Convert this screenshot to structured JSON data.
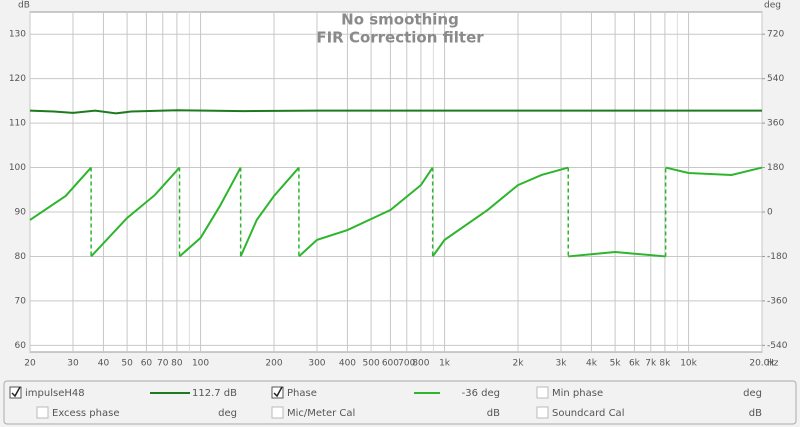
{
  "chart_data": {
    "type": "line",
    "title": "No smoothing",
    "subtitle": "FIR Correction filter",
    "y_label": "dB",
    "y2_label": "deg",
    "x_unit": "Hz",
    "x_scale": "log",
    "grid": true,
    "xlim": [
      20,
      20000
    ],
    "ylim": [
      58.5,
      135
    ],
    "y2lim": [
      -567,
      810
    ],
    "xticks": [
      20,
      30,
      40,
      50,
      60,
      70,
      80,
      100,
      200,
      300,
      400,
      500,
      600,
      700,
      800,
      {
        "value": 1000,
        "label": "1k"
      },
      {
        "value": 2000,
        "label": "2k"
      },
      {
        "value": 3000,
        "label": "3k"
      },
      {
        "value": 4000,
        "label": "4k"
      },
      {
        "value": 5000,
        "label": "5k"
      },
      {
        "value": 6000,
        "label": "6k"
      },
      {
        "value": 7000,
        "label": "7k"
      },
      {
        "value": 8000,
        "label": "8k"
      },
      {
        "value": 10000,
        "label": "10k"
      },
      {
        "value": 20000,
        "label": "20.0k"
      }
    ],
    "xminor": [
      90,
      900,
      9000
    ],
    "yticks": [
      60,
      70,
      80,
      90,
      100,
      110,
      120,
      130
    ],
    "y2ticks": [
      -540,
      -360,
      -180,
      0,
      180,
      360,
      540,
      720
    ],
    "series": [
      {
        "name": "impulseH48",
        "color": "#1e7a1e",
        "x": [
          20,
          25,
          30,
          37,
          45,
          52,
          80,
          150,
          300,
          1000,
          5000,
          20000
        ],
        "values": [
          112.8,
          112.6,
          112.3,
          112.8,
          112.2,
          112.6,
          112.9,
          112.7,
          112.8,
          112.8,
          112.8,
          112.8
        ]
      },
      {
        "name": "Phase",
        "color": "#2db52d",
        "axis": "y2",
        "x": [
          20,
          28,
          35.6,
          35.6,
          50,
          65,
          82,
          82,
          100,
          120,
          146,
          146,
          170,
          200,
          253,
          253,
          300,
          400,
          600,
          800,
          894,
          894,
          1000,
          1500,
          2000,
          2500,
          3213,
          3213,
          5000,
          8054,
          8054,
          10000,
          15000,
          20000
        ],
        "values": [
          -32,
          65,
          180,
          -180,
          -24,
          69,
          180,
          -180,
          -105,
          24,
          180,
          -180,
          -32,
          65,
          180,
          -180,
          -113,
          -73,
          8,
          109,
          180,
          -180,
          -113,
          8,
          109,
          150,
          180,
          -180,
          -162,
          -180,
          180,
          158,
          150,
          180
        ]
      }
    ]
  },
  "legend_panel": {
    "items": [
      {
        "checked": true,
        "readout": "112.7 dB"
      },
      {
        "checked": true,
        "readout": "-36 deg"
      },
      {
        "checked": false,
        "label": "Min phase",
        "unit": "deg"
      },
      {
        "checked": false,
        "label": "Excess phase",
        "unit": "deg"
      },
      {
        "checked": false,
        "label": "Mic/Meter Cal",
        "unit": "dB"
      },
      {
        "checked": false,
        "label": "Soundcard Cal",
        "unit": "dB"
      }
    ]
  }
}
